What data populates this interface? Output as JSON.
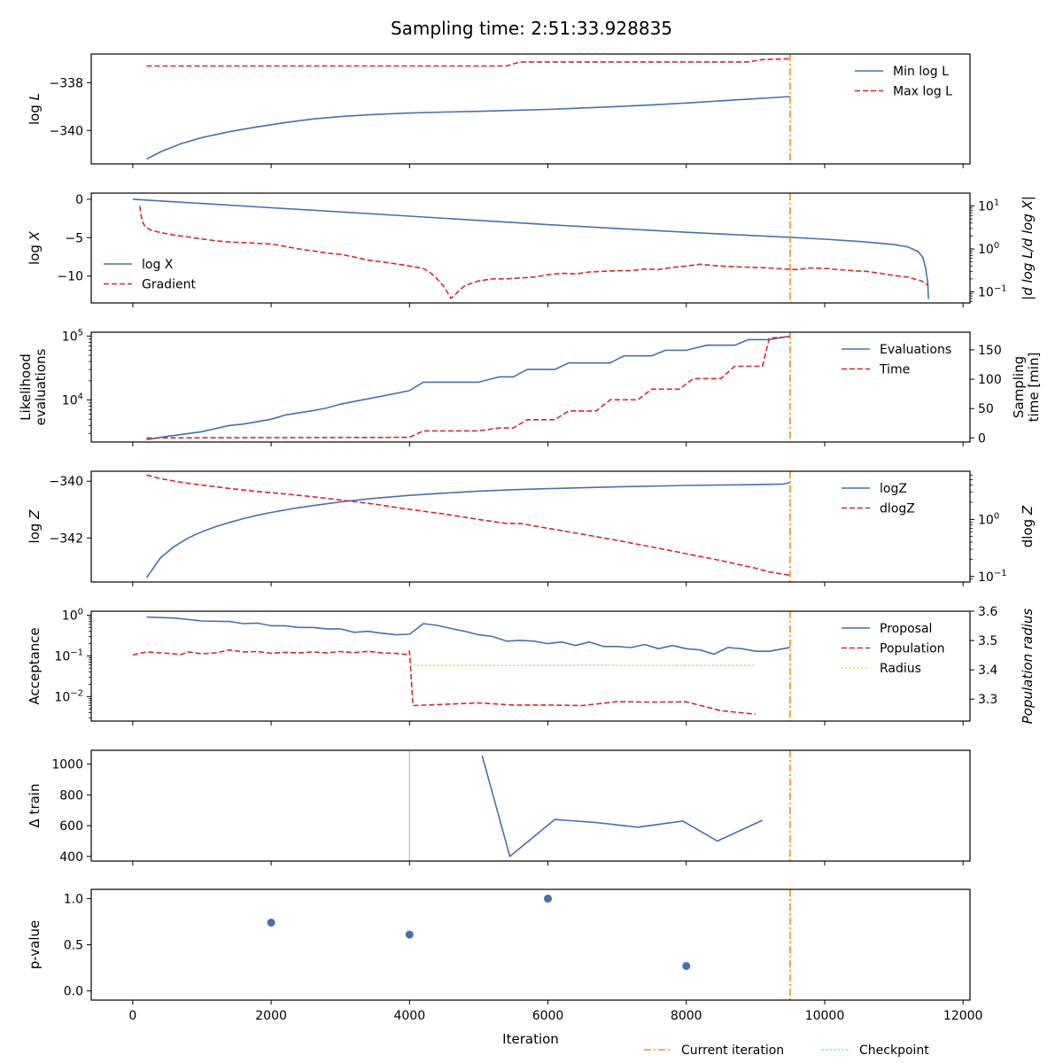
{
  "title": "Sampling time: 2:51:33.928835",
  "colors": {
    "blue": "#4470b0",
    "red": "#d62728",
    "orange": "#ff8c00",
    "yellow": "#e8c81c",
    "cyan": "#5bc0de",
    "grey": "#c8c8c8"
  },
  "xaxis": {
    "label": "Iteration",
    "range": [
      -600,
      12100
    ],
    "ticks": [
      0,
      2000,
      4000,
      6000,
      8000,
      10000,
      12000
    ]
  },
  "current_iteration": 9500,
  "bottom_legend": [
    {
      "name": "Current iteration",
      "color": "#ff8c00",
      "style": "dashdot"
    },
    {
      "name": "Checkpoint",
      "color": "#5bc0de",
      "style": "dotted"
    }
  ],
  "chart_data": [
    {
      "type": "line",
      "ylabel": "log L",
      "left": {
        "scale": "linear",
        "range": [
          -341.4,
          -336.8
        ],
        "ticks": [
          -340,
          -338
        ],
        "tick_labels": [
          "−340",
          "−338"
        ]
      },
      "legend_position": "top-right",
      "series": [
        {
          "name": "Min log L",
          "axis": "left",
          "color": "#4470b0",
          "style": "solid",
          "x": [
            200,
            400,
            700,
            1000,
            1400,
            1800,
            2200,
            2600,
            3000,
            3500,
            4000,
            4500,
            5000,
            5500,
            6000,
            6500,
            7000,
            7500,
            8000,
            8500,
            9000,
            9500
          ],
          "y": [
            -341.2,
            -340.9,
            -340.55,
            -340.3,
            -340.05,
            -339.85,
            -339.67,
            -339.52,
            -339.42,
            -339.33,
            -339.27,
            -339.23,
            -339.2,
            -339.16,
            -339.12,
            -339.06,
            -339.0,
            -338.93,
            -338.85,
            -338.76,
            -338.67,
            -338.58
          ]
        },
        {
          "name": "Max log L",
          "axis": "left",
          "color": "#d62728",
          "style": "dashed",
          "x": [
            200,
            5400,
            5600,
            8900,
            9100,
            9500
          ],
          "y": [
            -337.3,
            -337.3,
            -337.13,
            -337.13,
            -337.03,
            -337.0
          ]
        }
      ]
    },
    {
      "type": "line",
      "ylabel": "log X",
      "y2label": "|d log L/d log X|",
      "left": {
        "scale": "linear",
        "range": [
          -13.5,
          0.8
        ],
        "ticks": [
          0,
          -5,
          -10
        ],
        "tick_labels": [
          "0",
          "−5",
          "−10"
        ]
      },
      "right": {
        "scale": "log",
        "range": [
          0.055,
          20
        ],
        "ticks": [
          0.1,
          1,
          10
        ],
        "tick_labels": [
          "10^-1",
          "10^0",
          "10^1"
        ]
      },
      "legend_position": "left",
      "series": [
        {
          "name": "log X",
          "axis": "left",
          "color": "#4470b0",
          "style": "solid",
          "x": [
            0,
            1000,
            2000,
            3000,
            4000,
            5000,
            6000,
            7000,
            8000,
            9000,
            9500,
            10000,
            10500,
            11000,
            11200,
            11350,
            11420,
            11460,
            11490,
            11500
          ],
          "y": [
            0,
            -0.55,
            -1.1,
            -1.65,
            -2.2,
            -2.75,
            -3.3,
            -3.8,
            -4.3,
            -4.75,
            -4.95,
            -5.2,
            -5.5,
            -5.9,
            -6.2,
            -6.8,
            -7.6,
            -9.0,
            -11.0,
            -13.0
          ]
        },
        {
          "name": "Gradient",
          "axis": "right",
          "color": "#d62728",
          "style": "dashed",
          "x": [
            100,
            120,
            150,
            180,
            250,
            400,
            600,
            800,
            1000,
            1200,
            1400,
            1600,
            1800,
            2000,
            2200,
            2400,
            2600,
            2800,
            3000,
            3200,
            3400,
            3600,
            3800,
            4000,
            4200,
            4300,
            4400,
            4500,
            4600,
            4700,
            4800,
            5000,
            5200,
            5400,
            5600,
            5800,
            6000,
            6200,
            6400,
            6600,
            6800,
            7000,
            7200,
            7400,
            7600,
            7800,
            8000,
            8200,
            8400,
            8600,
            8800,
            9000,
            9200,
            9400,
            9600,
            9800,
            10000,
            10200,
            10400,
            10600,
            10800,
            11000,
            11200,
            11400,
            11500
          ],
          "y": [
            10,
            6,
            4,
            3.3,
            2.8,
            2.4,
            2.1,
            1.9,
            1.7,
            1.55,
            1.45,
            1.4,
            1.35,
            1.3,
            1.15,
            1.0,
            0.9,
            0.8,
            0.75,
            0.65,
            0.55,
            0.5,
            0.45,
            0.4,
            0.35,
            0.28,
            0.2,
            0.13,
            0.07,
            0.1,
            0.14,
            0.18,
            0.2,
            0.2,
            0.21,
            0.22,
            0.25,
            0.27,
            0.26,
            0.29,
            0.3,
            0.31,
            0.31,
            0.34,
            0.33,
            0.37,
            0.4,
            0.44,
            0.41,
            0.39,
            0.38,
            0.37,
            0.36,
            0.34,
            0.33,
            0.36,
            0.35,
            0.33,
            0.31,
            0.3,
            0.27,
            0.24,
            0.22,
            0.18,
            0.14
          ]
        }
      ]
    },
    {
      "type": "line",
      "ylabel": "Likelihood evaluations",
      "y2label": "Sampling time [min]",
      "left": {
        "scale": "log",
        "range": [
          2200,
          115000
        ],
        "ticks": [
          10000,
          100000
        ],
        "tick_labels": [
          "10^4",
          "10^5"
        ]
      },
      "right": {
        "scale": "linear",
        "range": [
          -7,
          180
        ],
        "ticks": [
          0,
          50,
          100,
          150
        ],
        "tick_labels": [
          "0",
          "50",
          "100",
          "150"
        ]
      },
      "legend_position": "top-right",
      "series": [
        {
          "name": "Evaluations",
          "axis": "left",
          "color": "#4470b0",
          "style": "solid",
          "x": [
            200,
            500,
            1000,
            1400,
            1600,
            2000,
            2200,
            2600,
            2800,
            3000,
            3200,
            3600,
            4000,
            4200,
            5000,
            5300,
            5500,
            5700,
            6100,
            6300,
            6900,
            7100,
            7500,
            7700,
            8000,
            8300,
            8700,
            8900,
            9200,
            9500
          ],
          "y": [
            2400,
            2700,
            3200,
            4000,
            4200,
            5000,
            5800,
            6800,
            7500,
            8600,
            9500,
            11500,
            14000,
            19000,
            19000,
            23000,
            23000,
            30000,
            30000,
            38000,
            38000,
            49000,
            49000,
            60000,
            60000,
            72000,
            72000,
            88000,
            88000,
            100000
          ]
        },
        {
          "name": "Time",
          "axis": "right",
          "color": "#d62728",
          "style": "dashed",
          "x": [
            200,
            4000,
            4200,
            5000,
            5300,
            5500,
            5700,
            6100,
            6300,
            6700,
            6900,
            7300,
            7500,
            7900,
            8100,
            8500,
            8700,
            9100,
            9200,
            9500
          ],
          "y": [
            0,
            1,
            12,
            12,
            17,
            17,
            31,
            31,
            46,
            46,
            65,
            65,
            83,
            83,
            101,
            101,
            122,
            122,
            170,
            172
          ]
        }
      ]
    },
    {
      "type": "line",
      "ylabel": "log Z",
      "y2label": "dlog Z",
      "left": {
        "scale": "linear",
        "range": [
          -343.55,
          -339.65
        ],
        "ticks": [
          -340,
          -342
        ],
        "tick_labels": [
          "−340",
          "−342"
        ]
      },
      "right": {
        "scale": "log",
        "range": [
          0.08,
          7
        ],
        "ticks": [
          0.1,
          1
        ],
        "tick_labels": [
          "10^-1",
          "10^0"
        ]
      },
      "legend_position": "top-right",
      "series": [
        {
          "name": "logZ",
          "axis": "left",
          "color": "#4470b0",
          "style": "solid",
          "x": [
            200,
            400,
            600,
            800,
            1000,
            1200,
            1400,
            1600,
            1800,
            2000,
            2300,
            2600,
            3000,
            3500,
            4000,
            4500,
            5000,
            5500,
            6000,
            7000,
            8000,
            9000,
            9400,
            9500
          ],
          "y": [
            -343.4,
            -342.7,
            -342.3,
            -342.0,
            -341.78,
            -341.6,
            -341.45,
            -341.32,
            -341.2,
            -341.1,
            -340.97,
            -340.86,
            -340.73,
            -340.6,
            -340.5,
            -340.42,
            -340.35,
            -340.3,
            -340.26,
            -340.2,
            -340.15,
            -340.12,
            -340.1,
            -340.05
          ]
        },
        {
          "name": "dlogZ",
          "axis": "right",
          "color": "#d62728",
          "style": "dashed",
          "x": [
            200,
            400,
            600,
            800,
            1000,
            1400,
            1800,
            2200,
            2600,
            3000,
            3500,
            4000,
            4500,
            5000,
            5400,
            5600,
            6000,
            6500,
            7000,
            7500,
            8000,
            8500,
            9000,
            9200,
            9500
          ],
          "y": [
            6,
            5.2,
            4.7,
            4.3,
            4.0,
            3.5,
            3.1,
            2.8,
            2.5,
            2.2,
            1.85,
            1.5,
            1.25,
            1.0,
            0.85,
            0.85,
            0.7,
            0.55,
            0.43,
            0.33,
            0.25,
            0.19,
            0.14,
            0.12,
            0.105
          ]
        }
      ]
    },
    {
      "type": "line",
      "ylabel": "Acceptance",
      "y2label": "Population radius",
      "left": {
        "scale": "log",
        "range": [
          0.0025,
          1.25
        ],
        "ticks": [
          0.01,
          0.1,
          1
        ],
        "tick_labels": [
          "10^-2",
          "10^-1",
          "10^0"
        ]
      },
      "right": {
        "scale": "linear",
        "range": [
          3.225,
          3.6
        ],
        "ticks": [
          3.3,
          3.4,
          3.5,
          3.6
        ],
        "tick_labels": [
          "3.3",
          "3.4",
          "3.5",
          "3.6"
        ]
      },
      "legend_position": "top-right",
      "series": [
        {
          "name": "Proposal",
          "axis": "left",
          "color": "#4470b0",
          "style": "solid",
          "x": [
            200,
            600,
            1000,
            1400,
            1600,
            1800,
            2000,
            2200,
            2400,
            2600,
            2800,
            3000,
            3200,
            3400,
            3600,
            3800,
            4000,
            4200,
            4400,
            4600,
            4800,
            5000,
            5200,
            5400,
            5600,
            5800,
            6000,
            6200,
            6400,
            6600,
            6800,
            7000,
            7200,
            7400,
            7600,
            7800,
            8000,
            8200,
            8400,
            8600,
            8800,
            9000,
            9200,
            9400,
            9500
          ],
          "y": [
            0.9,
            0.85,
            0.72,
            0.7,
            0.62,
            0.64,
            0.55,
            0.55,
            0.5,
            0.5,
            0.46,
            0.46,
            0.38,
            0.4,
            0.36,
            0.33,
            0.34,
            0.62,
            0.56,
            0.47,
            0.4,
            0.33,
            0.3,
            0.23,
            0.24,
            0.23,
            0.2,
            0.22,
            0.18,
            0.22,
            0.17,
            0.17,
            0.16,
            0.19,
            0.15,
            0.18,
            0.15,
            0.14,
            0.11,
            0.16,
            0.15,
            0.13,
            0.13,
            0.15,
            0.16
          ]
        },
        {
          "name": "Population",
          "axis": "left",
          "color": "#d62728",
          "style": "dashed",
          "x": [
            0,
            200,
            500,
            700,
            800,
            1000,
            1200,
            1400,
            1600,
            1800,
            2000,
            2200,
            2400,
            2600,
            2800,
            3000,
            3200,
            3400,
            3600,
            3800,
            3950,
            4000,
            4050,
            5000,
            5500,
            6000,
            6500,
            7000,
            7500,
            8000,
            8500,
            9000
          ],
          "y": [
            0.105,
            0.125,
            0.115,
            0.108,
            0.125,
            0.112,
            0.118,
            0.14,
            0.125,
            0.128,
            0.115,
            0.122,
            0.118,
            0.125,
            0.118,
            0.128,
            0.12,
            0.13,
            0.118,
            0.115,
            0.108,
            0.13,
            0.006,
            0.007,
            0.0062,
            0.0062,
            0.006,
            0.0075,
            0.0073,
            0.0074,
            0.0045,
            0.0037
          ]
        },
        {
          "name": "Radius",
          "axis": "right",
          "color": "#e8c81c",
          "style": "dotted",
          "x": [
            4000,
            9000
          ],
          "y": [
            3.415,
            3.415
          ]
        }
      ]
    },
    {
      "type": "line",
      "ylabel": "Δ train",
      "left": {
        "scale": "linear",
        "range": [
          370,
          1090
        ],
        "ticks": [
          400,
          600,
          800,
          1000
        ],
        "tick_labels": [
          "400",
          "600",
          "800",
          "1000"
        ]
      },
      "vline_grey": 4000,
      "legend_position": "none",
      "series": [
        {
          "axis": "left",
          "color": "#4470b0",
          "style": "solid",
          "x": [
            5050,
            5450,
            6100,
            6700,
            7300,
            7950,
            8450,
            9100
          ],
          "y": [
            1055,
            400,
            640,
            620,
            590,
            630,
            500,
            635
          ]
        }
      ]
    },
    {
      "type": "scatter",
      "ylabel": "p-value",
      "left": {
        "scale": "linear",
        "range": [
          -0.1,
          1.1
        ],
        "ticks": [
          0.0,
          0.5,
          1.0
        ],
        "tick_labels": [
          "0.0",
          "0.5",
          "1.0"
        ]
      },
      "legend_position": "none",
      "series": [
        {
          "axis": "left",
          "color": "#4470b0",
          "style": "marker",
          "x": [
            2000,
            4000,
            6000,
            8000
          ],
          "y": [
            0.74,
            0.61,
            1.0,
            0.27
          ]
        }
      ]
    }
  ]
}
